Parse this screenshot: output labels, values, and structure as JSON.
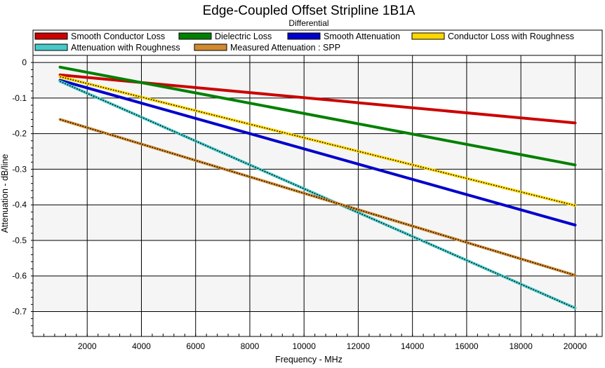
{
  "chart_data": {
    "type": "line",
    "title": "Edge-Coupled Offset Stripline 1B1A",
    "subtitle": "Differential",
    "xlabel": "Frequency - MHz",
    "ylabel": "Attenuation - dB/line",
    "xlim": [
      0,
      21000
    ],
    "ylim": [
      -0.77,
      0.02
    ],
    "x_ticks": [
      2000,
      4000,
      6000,
      8000,
      10000,
      12000,
      14000,
      16000,
      18000,
      20000
    ],
    "y_ticks": [
      0,
      -0.1,
      -0.2,
      -0.3,
      -0.4,
      -0.5,
      -0.6,
      -0.7
    ],
    "grid": true,
    "legend_placement": "top",
    "series": [
      {
        "name": "Smooth Conductor Loss",
        "color": "#cc0000",
        "dotted": false,
        "x": [
          1000,
          20000
        ],
        "y": [
          -0.035,
          -0.17
        ]
      },
      {
        "name": "Dielectric Loss",
        "color": "#008000",
        "dotted": false,
        "x": [
          1000,
          20000
        ],
        "y": [
          -0.013,
          -0.288
        ]
      },
      {
        "name": "Smooth Attenuation",
        "color": "#0000cc",
        "dotted": false,
        "x": [
          1000,
          20000
        ],
        "y": [
          -0.05,
          -0.457
        ]
      },
      {
        "name": "Conductor Loss with Roughness",
        "color": "#ffd700",
        "dotted": true,
        "x": [
          1000,
          20000
        ],
        "y": [
          -0.04,
          -0.402
        ]
      },
      {
        "name": "Attenuation with Roughness",
        "color": "#48c8c8",
        "dotted": true,
        "x": [
          1000,
          20000
        ],
        "y": [
          -0.053,
          -0.69
        ]
      },
      {
        "name": "Measured Attenuation : SPP",
        "color": "#d08a30",
        "dotted": true,
        "x": [
          1000,
          20000
        ],
        "y": [
          -0.16,
          -0.598
        ]
      }
    ]
  }
}
